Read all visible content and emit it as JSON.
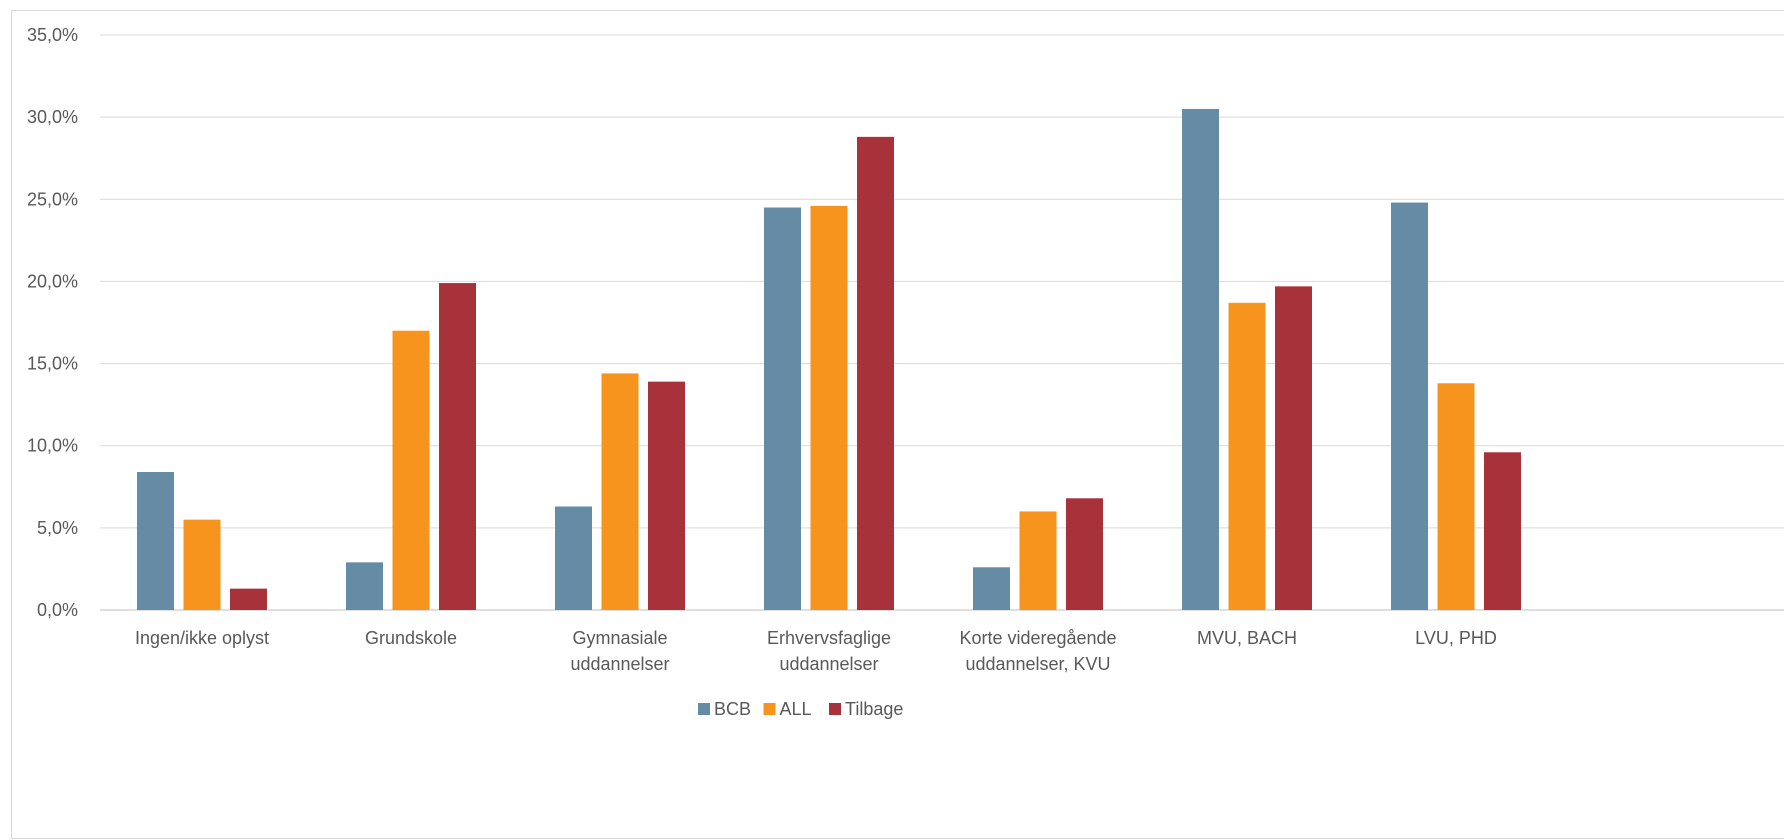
{
  "chart_data": {
    "type": "bar",
    "title": "",
    "xlabel": "",
    "ylabel": "",
    "ylim": [
      0,
      35
    ],
    "y_ticks": [
      "0,0%",
      "5,0%",
      "10,0%",
      "15,0%",
      "20,0%",
      "25,0%",
      "30,0%",
      "35,0%"
    ],
    "grid": true,
    "legend_position": "bottom",
    "categories": [
      [
        "Ingen/ikke oplyst"
      ],
      [
        "Grundskole"
      ],
      [
        "Gymnasiale",
        "uddannelser"
      ],
      [
        "Erhvervsfaglige",
        "uddannelser"
      ],
      [
        "Korte videregående",
        "uddannelser, KVU"
      ],
      [
        "MVU, BACH"
      ],
      [
        "LVU, PHD"
      ]
    ],
    "series": [
      {
        "name": "BCB",
        "color": "#658BA5",
        "values": [
          8.4,
          2.9,
          6.3,
          24.5,
          2.6,
          30.5,
          24.8
        ]
      },
      {
        "name": "ALL",
        "color": "#F7941E",
        "values": [
          5.5,
          17.0,
          14.4,
          24.6,
          6.0,
          18.7,
          13.8
        ]
      },
      {
        "name": "Tilbage",
        "color": "#A8323A",
        "values": [
          1.3,
          19.9,
          13.9,
          28.8,
          6.8,
          19.7,
          9.6
        ]
      }
    ]
  }
}
